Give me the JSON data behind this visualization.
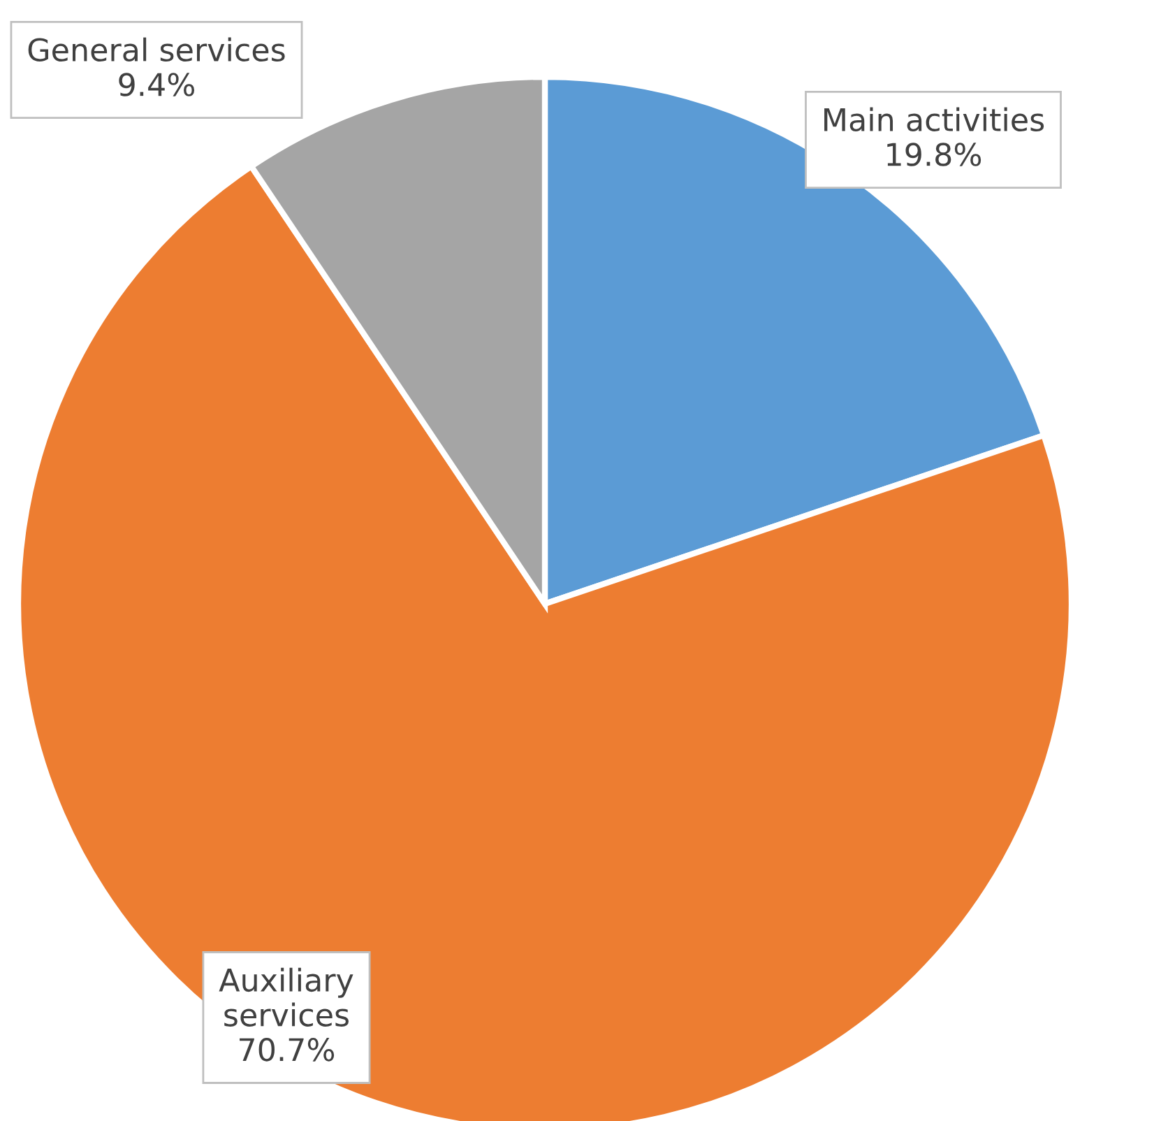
{
  "chart_data": {
    "type": "pie",
    "categories": [
      "Main activities",
      "Auxiliary services",
      "General services"
    ],
    "values": [
      19.8,
      70.7,
      9.4
    ],
    "value_labels": [
      "19.8%",
      "70.7%",
      "9.4%"
    ],
    "colors": [
      "#5b9bd5",
      "#ed7d31",
      "#a5a5a5"
    ],
    "legend": false
  }
}
